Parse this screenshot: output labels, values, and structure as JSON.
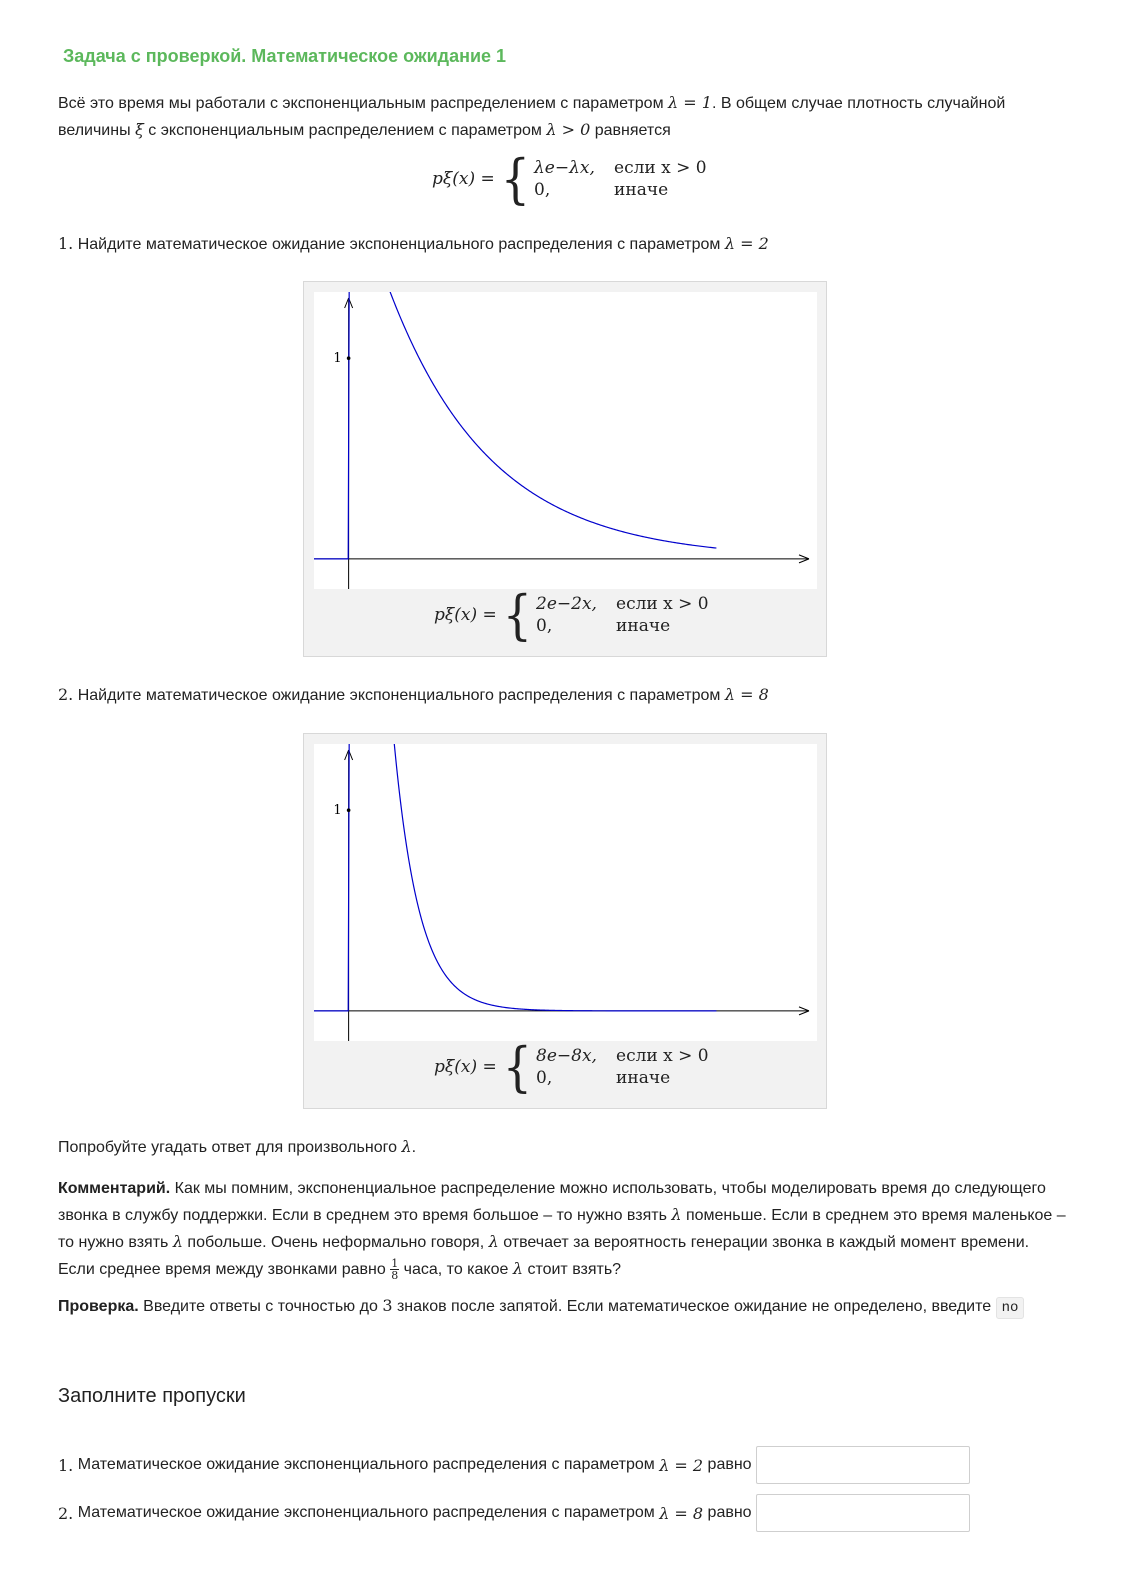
{
  "task": {
    "title": "Задача с проверкой. Математическое ожидание 1",
    "intro_1": "Всё это время мы работали с экспоненциальным распределением с параметром",
    "intro_lambda1": "λ = 1",
    "intro_2": ". В общем случае плотность случайной",
    "intro_3": "величины",
    "intro_xi": "ξ",
    "intro_4": "с экспоненциальным распределением с параметром",
    "intro_lambda_pos": "λ > 0",
    "intro_5": "равняется"
  },
  "general_formula": {
    "lhs": "pξ(x) =",
    "row1_expr": "λe−λx,",
    "row1_cond": "если x > 0",
    "row2_expr": "0,",
    "row2_cond": "иначе"
  },
  "question1": {
    "num": "1.",
    "text": "Найдите математическое ожидание экспоненциального распределения с параметром",
    "param": "λ = 2"
  },
  "figure1": {
    "tick_label": "1",
    "lhs": "pξ(x) =",
    "row1_expr": "2e−2x,",
    "row1_cond": "если x > 0",
    "row2_expr": "0,",
    "row2_cond": "иначе"
  },
  "question2": {
    "num": "2.",
    "text": "Найдите математическое ожидание экспоненциального распределения с параметром",
    "param": "λ = 8"
  },
  "figure2": {
    "tick_label": "1",
    "lhs": "pξ(x) =",
    "row1_expr": "8e−8x,",
    "row1_cond": "если x > 0",
    "row2_expr": "0,",
    "row2_cond": "иначе"
  },
  "hint": {
    "text": "Попробуйте угадать ответ для произвольного",
    "lambda": "λ",
    "end": "."
  },
  "comment": {
    "label": "Комментарий.",
    "t1": "Как мы помним, экспоненциальное распределение можно использовать, чтобы моделировать время до следующего звонка в службу поддержки. Если в среднем это время большое – то нужно взять",
    "t2": "поменьше. Если в среднем это время маленькое – то нужно взять",
    "t3": "побольше. Очень неформально говоря,",
    "t4": "отвечает за вероятность генерации звонка в каждый момент времени. Если среднее время между звонками равно",
    "frac_num": "1",
    "frac_den": "8",
    "t5": "часа, то какое",
    "t6": "стоит взять?",
    "lambda": "λ"
  },
  "check": {
    "label": "Проверка.",
    "t1": "Введите ответы с точностью до",
    "digits": "3",
    "t2": "знаков после запятой. Если математическое ожидание не определено, введите",
    "code": "no"
  },
  "blanks": {
    "heading": "Заполните пропуски",
    "row1": {
      "num": "1.",
      "text": "Математическое ожидание экспоненциального распределения с параметром",
      "param": "λ = 2",
      "suffix": "равно",
      "value": ""
    },
    "row2": {
      "num": "2.",
      "text": "Математическое ожидание экспоненциального распределения с параметром",
      "param": "λ = 8",
      "suffix": "равно",
      "value": ""
    }
  },
  "chart_data": [
    {
      "type": "line",
      "title": "",
      "xlabel": "",
      "ylabel": "",
      "y_ticks": [
        1
      ],
      "function": "2*exp(-2x)",
      "lambda": 2,
      "xlim": [
        -0.17,
        2.3
      ],
      "ylim": [
        -0.15,
        1.33
      ],
      "series_color": "#0000cc"
    },
    {
      "type": "line",
      "title": "",
      "xlabel": "",
      "ylabel": "",
      "y_ticks": [
        1
      ],
      "function": "8*exp(-8x)",
      "lambda": 8,
      "xlim": [
        -0.17,
        2.3
      ],
      "ylim": [
        -0.15,
        1.33
      ],
      "series_color": "#0000cc"
    }
  ]
}
